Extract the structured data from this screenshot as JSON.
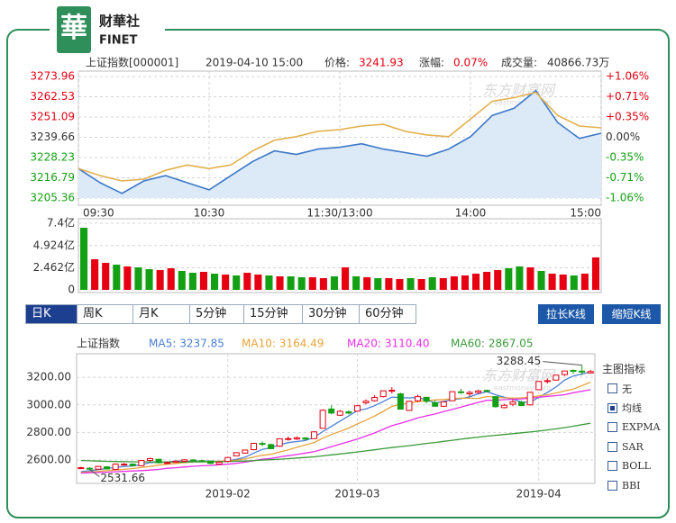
{
  "header": {
    "logo": "華",
    "brand": "财華社",
    "brand_en": "FINET"
  },
  "watermark": {
    "name": "东方财富网",
    "url": "eastmoney.com"
  },
  "toolbar": {
    "periods": [
      "日K",
      "周K",
      "月K",
      "5分钟",
      "15分钟",
      "30分钟",
      "60分钟"
    ],
    "selected": 0,
    "actions": [
      "拉长K线",
      "缩短K线"
    ]
  },
  "indicator_panel": {
    "title": "主图指标",
    "options": [
      "无",
      "均线",
      "EXPMA",
      "SAR",
      "BOLL",
      "BBI"
    ],
    "checked": 1
  },
  "chart_data": [
    {
      "type": "line",
      "info": {
        "name": "上证指数[000001]",
        "time": "2019-04-10 15:00",
        "price_label": "价格:",
        "change_label": "涨幅:",
        "change": "0.07%",
        "volume_label": "成交量:",
        "volume": "40866.73万"
      },
      "categories": [
        "09:30",
        null,
        null,
        null,
        null,
        null,
        "10:30",
        null,
        null,
        null,
        null,
        null,
        "11:30/13:00",
        null,
        null,
        null,
        null,
        null,
        "14:00",
        null,
        null,
        null,
        null,
        null,
        "15:00"
      ],
      "series": [
        {
          "color": "#3b78c8",
          "area": "#dce9f7",
          "values": [
            3222,
            3214,
            3208,
            3215,
            3218,
            3214,
            3210,
            3218,
            3226,
            3232,
            3230,
            3233,
            3234,
            3236,
            3233,
            3231,
            3229,
            3233,
            3240,
            3252,
            3256,
            3266,
            3248,
            3239,
            3241.93
          ]
        },
        {
          "color": "#e2b04c",
          "values": [
            3222,
            3218,
            3215,
            3216,
            3221,
            3224,
            3222,
            3224,
            3232,
            3238,
            3240,
            3243,
            3244,
            3246,
            3247,
            3243,
            3241,
            3240,
            3250,
            3260,
            3262,
            3265,
            3252,
            3246,
            3245
          ]
        }
      ],
      "ylim": [
        3205.36,
        3273.96
      ],
      "yticks": [
        3273.96,
        3262.53,
        3251.09,
        3239.66,
        3228.23,
        3216.79,
        3205.36
      ],
      "y2lim": [
        -1.06,
        1.06
      ],
      "y2ticks": [
        {
          "value": 1.06,
          "label": "+1.06%"
        },
        {
          "value": 0.71,
          "label": "+0.71%"
        },
        {
          "value": 0.35,
          "label": "+0.35%"
        },
        {
          "value": 0,
          "label": "0.00%"
        },
        {
          "value": -0.35,
          "label": "-0.35%"
        },
        {
          "value": -0.71,
          "label": "-0.71%"
        },
        {
          "value": -1.06,
          "label": "-1.06%"
        }
      ],
      "grid": true
    },
    {
      "type": "bar",
      "values": [
        6.9,
        3.4,
        3.0,
        2.8,
        2.6,
        2.5,
        2.3,
        2.2,
        2.4,
        2.1,
        1.9,
        2.0,
        1.8,
        1.7,
        1.6,
        1.9,
        1.7,
        1.6,
        1.5,
        1.5,
        1.4,
        1.4,
        1.3,
        1.5,
        2.5,
        1.5,
        1.4,
        1.3,
        1.3,
        1.2,
        1.3,
        1.2,
        1.4,
        1.3,
        1.5,
        1.6,
        1.8,
        2.0,
        2.2,
        2.4,
        2.6,
        2.5,
        2.1,
        1.8,
        1.7,
        1.6,
        1.8,
        3.6
      ],
      "colors": [
        "#14a014",
        "#e60012",
        "#e60012",
        "#14a014",
        "#e60012",
        "#14a014",
        "#14a014",
        "#e60012",
        "#e60012",
        "#14a014",
        "#14a014",
        "#e60012",
        "#14a014",
        "#e60012",
        "#14a014",
        "#e60012",
        "#e60012",
        "#14a014",
        "#e60012",
        "#14a014",
        "#14a014",
        "#e60012",
        "#e60012",
        "#14a014",
        "#e60012",
        "#14a014",
        "#e60012",
        "#14a014",
        "#e60012",
        "#e60012",
        "#14a014",
        "#e60012",
        "#14a014",
        "#e60012",
        "#e60012",
        "#e60012",
        "#e60012",
        "#e60012",
        "#e60012",
        "#14a014",
        "#14a014",
        "#e60012",
        "#14a014",
        "#e60012",
        "#e60012",
        "#14a014",
        "#e60012",
        "#e60012"
      ],
      "ylim": [
        0,
        7.4
      ],
      "yticks": [
        {
          "value": 7.4,
          "label": "7.4亿"
        },
        {
          "value": 4.924,
          "label": "4.924亿"
        },
        {
          "value": 2.462,
          "label": "2.462亿"
        },
        0
      ],
      "grid": true
    },
    {
      "type": "candlestick",
      "title": "上证指数",
      "categories": [
        null,
        null,
        null,
        null,
        null,
        null,
        null,
        null,
        null,
        null,
        null,
        null,
        null,
        null,
        null,
        null,
        null,
        "2019-02",
        null,
        null,
        null,
        null,
        null,
        null,
        null,
        null,
        null,
        null,
        null,
        null,
        null,
        null,
        "2019-03",
        null,
        null,
        null,
        null,
        null,
        null,
        null,
        null,
        null,
        null,
        null,
        null,
        null,
        null,
        null,
        null,
        null,
        null,
        null,
        null,
        "2019-04",
        null,
        null,
        null,
        null,
        null,
        null
      ],
      "open": [
        2538,
        2540,
        2533,
        2550,
        2532,
        2568,
        2570,
        2558,
        2597,
        2605,
        2577,
        2583,
        2590,
        2600,
        2595,
        2592,
        2570,
        2590,
        2630,
        2650,
        2675,
        2720,
        2712,
        2700,
        2750,
        2752,
        2760,
        2755,
        2830,
        2970,
        2925,
        2950,
        2955,
        3015,
        3030,
        3060,
        3100,
        3080,
        2960,
        3030,
        3055,
        3015,
        2990,
        3030,
        3095,
        3080,
        3090,
        3105,
        3060,
        2980,
        3005,
        3020,
        3000,
        3110,
        3175,
        3180,
        3220,
        3250,
        3245,
        3232
      ],
      "high": [
        2550,
        2548,
        2558,
        2556,
        2575,
        2578,
        2575,
        2600,
        2616,
        2608,
        2590,
        2597,
        2606,
        2606,
        2603,
        2596,
        2589,
        2622,
        2657,
        2676,
        2723,
        2735,
        2718,
        2755,
        2770,
        2771,
        2766,
        2809,
        2968,
        2997,
        2963,
        2960,
        2998,
        3040,
        3070,
        3103,
        3129,
        3088,
        3030,
        3075,
        3060,
        3033,
        3027,
        3097,
        3117,
        3103,
        3110,
        3112,
        3063,
        3007,
        3040,
        3030,
        3095,
        3172,
        3192,
        3217,
        3247,
        3258,
        3288.45,
        3254
      ],
      "low": [
        2534,
        2531.66,
        2533,
        2532,
        2532,
        2565,
        2553,
        2556,
        2590,
        2575,
        2570,
        2578,
        2587,
        2590,
        2588,
        2570,
        2567,
        2586,
        2628,
        2648,
        2670,
        2700,
        2680,
        2695,
        2740,
        2745,
        2743,
        2753,
        2828,
        2931,
        2920,
        2930,
        2950,
        3003,
        3025,
        3054,
        3082,
        2967,
        2958,
        3020,
        3010,
        2985,
        2985,
        3030,
        3080,
        3060,
        3080,
        3090,
        2980,
        2975,
        2990,
        2990,
        2995,
        3108,
        3155,
        3178,
        3210,
        3225,
        3216,
        3230
      ],
      "close": [
        2544,
        2535,
        2553,
        2535,
        2570,
        2570,
        2559,
        2596,
        2610,
        2580,
        2581,
        2591,
        2601,
        2596,
        2594,
        2575,
        2584,
        2618,
        2653,
        2672,
        2721,
        2719,
        2682,
        2754,
        2755,
        2761,
        2751,
        2804,
        2961,
        2941,
        2953,
        2941,
        2994,
        3027,
        3054,
        3102,
        3106,
        2969,
        3026,
        3060,
        3026,
        2990,
        3022,
        3096,
        3090,
        3090,
        3101,
        3104,
        2987,
        2997,
        3022,
        2995,
        3091,
        3170,
        3176,
        3216,
        3246,
        3244,
        3239,
        3241.93
      ],
      "up_color": "#e60012",
      "down_color": "#14a014",
      "series": [
        {
          "name": "MA5:",
          "legend_value": "3237.85",
          "color": "#4a7fd6",
          "values": [
            2515,
            2522,
            2530,
            2538,
            2547,
            2553,
            2557,
            2566,
            2581,
            2583,
            2585,
            2592,
            2593,
            2590,
            2593,
            2591,
            2590,
            2593,
            2605,
            2620,
            2650,
            2677,
            2689,
            2710,
            2726,
            2734,
            2741,
            2765,
            2806,
            2844,
            2882,
            2920,
            2958,
            2971,
            2994,
            3024,
            3057,
            3052,
            3051,
            3053,
            3037,
            3014,
            3025,
            3039,
            3045,
            3058,
            3080,
            3096,
            3074,
            3056,
            3042,
            3021,
            3018,
            3055,
            3091,
            3130,
            3180,
            3210,
            3224,
            3237.85
          ]
        },
        {
          "name": "MA10:",
          "legend_value": "3164.49",
          "color": "#e8a33a",
          "values": [
            2510,
            2513,
            2517,
            2522,
            2527,
            2532,
            2538,
            2545,
            2553,
            2563,
            2569,
            2575,
            2580,
            2586,
            2588,
            2588,
            2591,
            2593,
            2598,
            2607,
            2621,
            2634,
            2641,
            2658,
            2673,
            2692,
            2709,
            2727,
            2758,
            2785,
            2808,
            2831,
            2862,
            2889,
            2919,
            2953,
            2989,
            3005,
            3011,
            3024,
            3031,
            3036,
            3039,
            3045,
            3049,
            3048,
            3047,
            3061,
            3057,
            3051,
            3050,
            3051,
            3057,
            3065,
            3074,
            3086,
            3101,
            3114,
            3140,
            3164.49
          ]
        },
        {
          "name": "MA20:",
          "legend_value": "3110.40",
          "color": "#e830e8",
          "values": [
            2505,
            2507,
            2509,
            2511,
            2514,
            2517,
            2520,
            2523,
            2527,
            2531,
            2540,
            2544,
            2549,
            2554,
            2558,
            2560,
            2565,
            2569,
            2576,
            2585,
            2595,
            2605,
            2611,
            2622,
            2631,
            2640,
            2650,
            2660,
            2678,
            2696,
            2715,
            2733,
            2752,
            2774,
            2796,
            2823,
            2849,
            2866,
            2885,
            2905,
            2920,
            2934,
            2951,
            2967,
            2984,
            3001,
            3018,
            3033,
            3034,
            3038,
            3041,
            3044,
            3048,
            3055,
            3062,
            3067,
            3074,
            3088,
            3099,
            3110.4
          ]
        },
        {
          "name": "MA60:",
          "legend_value": "2867.05",
          "color": "#3a9a3a",
          "values": [
            2596,
            2594,
            2592,
            2590,
            2589,
            2588,
            2587,
            2586,
            2586,
            2585,
            2585,
            2585,
            2585,
            2586,
            2586,
            2587,
            2588,
            2589,
            2591,
            2593,
            2596,
            2599,
            2602,
            2606,
            2610,
            2614,
            2618,
            2623,
            2630,
            2637,
            2644,
            2651,
            2658,
            2666,
            2674,
            2682,
            2690,
            2697,
            2704,
            2712,
            2720,
            2727,
            2735,
            2743,
            2751,
            2759,
            2766,
            2773,
            2779,
            2785,
            2791,
            2797,
            2803,
            2810,
            2818,
            2826,
            2835,
            2845,
            2856,
            2867.05
          ]
        }
      ],
      "ylim": [
        2430,
        3345
      ],
      "yticks": [
        {
          "value": 3200,
          "label": "3200.00"
        },
        {
          "value": 3000,
          "label": "3000.00"
        },
        {
          "value": 2800,
          "label": "2800.00"
        },
        {
          "value": 2600,
          "label": "2600.00"
        }
      ],
      "grid": true
    }
  ]
}
